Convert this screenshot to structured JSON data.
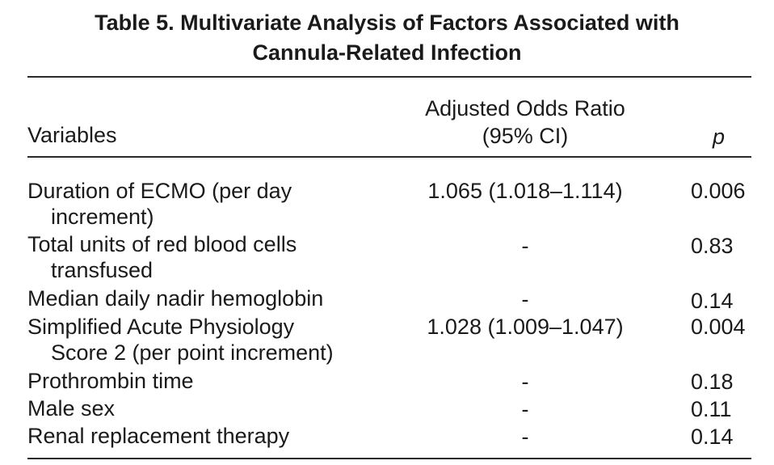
{
  "table": {
    "title_line1": "Table 5.  Multivariate Analysis of Factors Associated with",
    "title_line2": "Cannula-Related Infection",
    "headers": {
      "variables": "Variables",
      "or_line1": "Adjusted Odds Ratio",
      "or_line2": "(95% CI)",
      "p": "p"
    },
    "rows": [
      {
        "var1": "Duration of ECMO (per day",
        "var2": "increment)",
        "or": "1.065 (1.018–1.114)",
        "p": "0.006"
      },
      {
        "var1": "Total units of red blood cells",
        "var2": "transfused",
        "or": "-",
        "p": "0.83"
      },
      {
        "var1": "Median daily nadir hemoglobin",
        "var2": "",
        "or": "-",
        "p": "0.14"
      },
      {
        "var1": "Simplified Acute Physiology",
        "var2": "Score 2 (per point increment)",
        "or": "1.028 (1.009–1.047)",
        "p": "0.004"
      },
      {
        "var1": "Prothrombin time",
        "var2": "",
        "or": "-",
        "p": "0.18"
      },
      {
        "var1": "Male sex",
        "var2": "",
        "or": "-",
        "p": "0.11"
      },
      {
        "var1": "Renal replacement therapy",
        "var2": "",
        "or": "-",
        "p": "0.14"
      }
    ]
  }
}
